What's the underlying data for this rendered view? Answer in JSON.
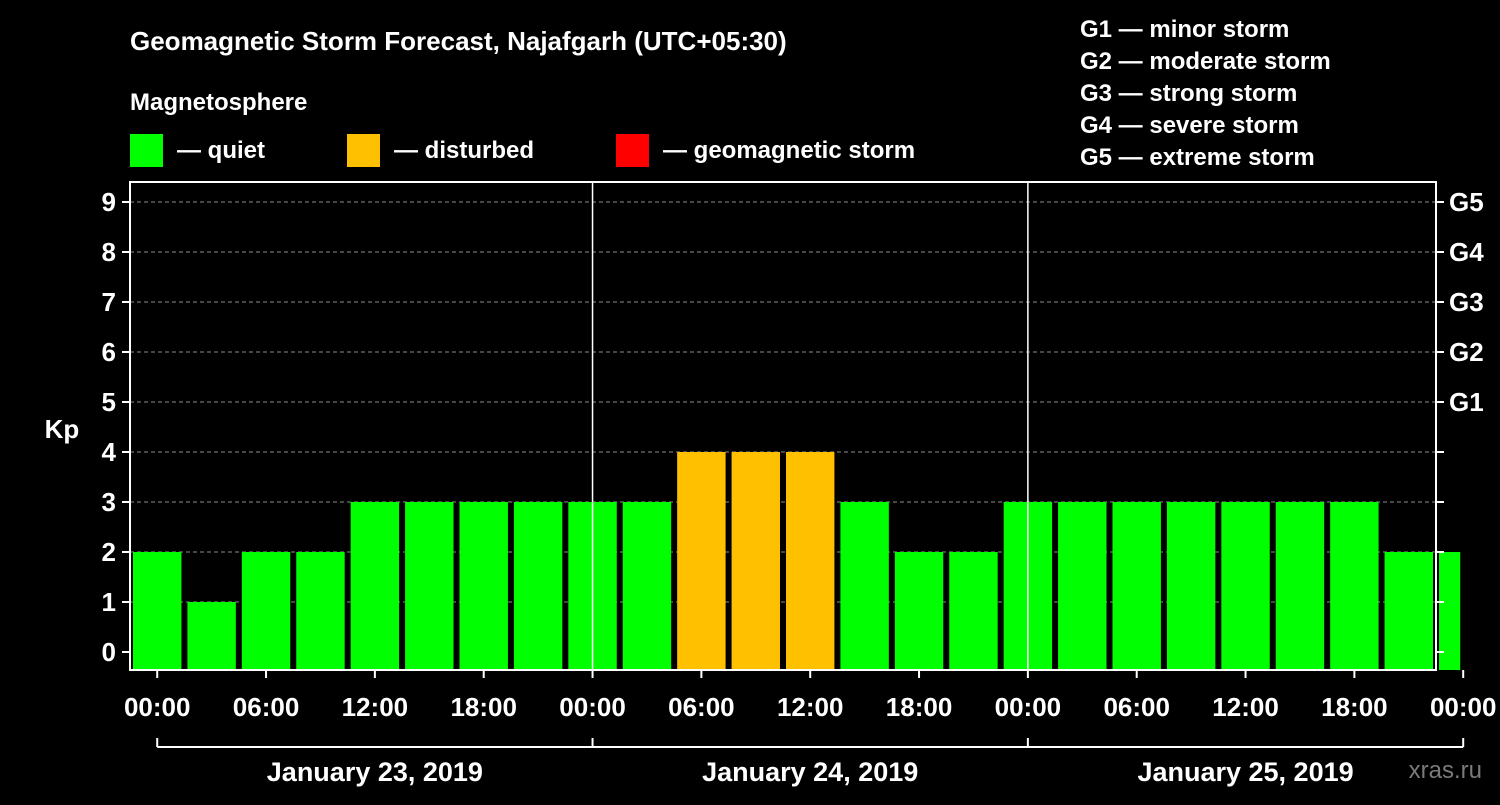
{
  "chart_data": {
    "type": "bar",
    "title": "Geomagnetic Storm Forecast, Najafgarh (UTC+05:30)",
    "legend_title": "Magnetosphere",
    "legend": [
      {
        "label": "— quiet",
        "color": "#00ff00"
      },
      {
        "label": "— disturbed",
        "color": "#ffc000"
      },
      {
        "label": "— geomagnetic storm",
        "color": "#ff0000"
      }
    ],
    "storm_scale": [
      "G1 — minor storm",
      "G2 — moderate storm",
      "G3 — strong storm",
      "G4 — severe storm",
      "G5 — extreme storm"
    ],
    "ylabel": "Kp",
    "ylim": [
      0,
      9
    ],
    "y_ticks": [
      "0",
      "1",
      "2",
      "3",
      "4",
      "5",
      "6",
      "7",
      "8",
      "9"
    ],
    "right_ticks": [
      {
        "value": 5,
        "label": "G1"
      },
      {
        "value": 6,
        "label": "G2"
      },
      {
        "value": 7,
        "label": "G3"
      },
      {
        "value": 8,
        "label": "G4"
      },
      {
        "value": 9,
        "label": "G5"
      }
    ],
    "x_range_hours": [
      -1.5,
      70.5
    ],
    "x_ticks": [
      {
        "hour": 0,
        "label": "00:00"
      },
      {
        "hour": 6,
        "label": "06:00"
      },
      {
        "hour": 12,
        "label": "12:00"
      },
      {
        "hour": 18,
        "label": "18:00"
      },
      {
        "hour": 24,
        "label": "00:00"
      },
      {
        "hour": 30,
        "label": "06:00"
      },
      {
        "hour": 36,
        "label": "12:00"
      },
      {
        "hour": 42,
        "label": "18:00"
      },
      {
        "hour": 48,
        "label": "00:00"
      },
      {
        "hour": 54,
        "label": "06:00"
      },
      {
        "hour": 60,
        "label": "12:00"
      },
      {
        "hour": 66,
        "label": "18:00"
      },
      {
        "hour": 72,
        "label": "00:00"
      }
    ],
    "day_dividers_hours": [
      24,
      48
    ],
    "days": [
      {
        "label": "January 23, 2019",
        "start_hour": 0,
        "end_hour": 24
      },
      {
        "label": "January 24, 2019",
        "start_hour": 24,
        "end_hour": 48
      },
      {
        "label": "January 25, 2019",
        "start_hour": 48,
        "end_hour": 72
      }
    ],
    "bars": [
      {
        "start_hour": -1.5,
        "end_hour": 1.5,
        "kp": 2
      },
      {
        "start_hour": 1.5,
        "end_hour": 4.5,
        "kp": 1
      },
      {
        "start_hour": 4.5,
        "end_hour": 7.5,
        "kp": 2
      },
      {
        "start_hour": 7.5,
        "end_hour": 10.5,
        "kp": 2
      },
      {
        "start_hour": 10.5,
        "end_hour": 13.5,
        "kp": 3
      },
      {
        "start_hour": 13.5,
        "end_hour": 16.5,
        "kp": 3
      },
      {
        "start_hour": 16.5,
        "end_hour": 19.5,
        "kp": 3
      },
      {
        "start_hour": 19.5,
        "end_hour": 22.5,
        "kp": 3
      },
      {
        "start_hour": 22.5,
        "end_hour": 25.5,
        "kp": 3
      },
      {
        "start_hour": 25.5,
        "end_hour": 28.5,
        "kp": 3
      },
      {
        "start_hour": 28.5,
        "end_hour": 31.5,
        "kp": 4
      },
      {
        "start_hour": 31.5,
        "end_hour": 34.5,
        "kp": 4
      },
      {
        "start_hour": 34.5,
        "end_hour": 37.5,
        "kp": 4
      },
      {
        "start_hour": 37.5,
        "end_hour": 40.5,
        "kp": 3
      },
      {
        "start_hour": 40.5,
        "end_hour": 43.5,
        "kp": 2
      },
      {
        "start_hour": 43.5,
        "end_hour": 46.5,
        "kp": 2
      },
      {
        "start_hour": 46.5,
        "end_hour": 49.5,
        "kp": 3
      },
      {
        "start_hour": 49.5,
        "end_hour": 52.5,
        "kp": 3
      },
      {
        "start_hour": 52.5,
        "end_hour": 55.5,
        "kp": 3
      },
      {
        "start_hour": 55.5,
        "end_hour": 58.5,
        "kp": 3
      },
      {
        "start_hour": 58.5,
        "end_hour": 61.5,
        "kp": 3
      },
      {
        "start_hour": 61.5,
        "end_hour": 64.5,
        "kp": 3
      },
      {
        "start_hour": 64.5,
        "end_hour": 67.5,
        "kp": 3
      },
      {
        "start_hour": 67.5,
        "end_hour": 70.5,
        "kp": 2
      },
      {
        "start_hour": 70.5,
        "end_hour": 72.0,
        "kp": 2
      }
    ],
    "grid": "dashed-horizontal",
    "colors": {
      "quiet": "#00ff00",
      "disturbed": "#ffc000",
      "storm": "#ff0000",
      "background": "#000000",
      "grid": "#8c8c8c"
    }
  },
  "footer": {
    "watermark": "xras.ru"
  }
}
